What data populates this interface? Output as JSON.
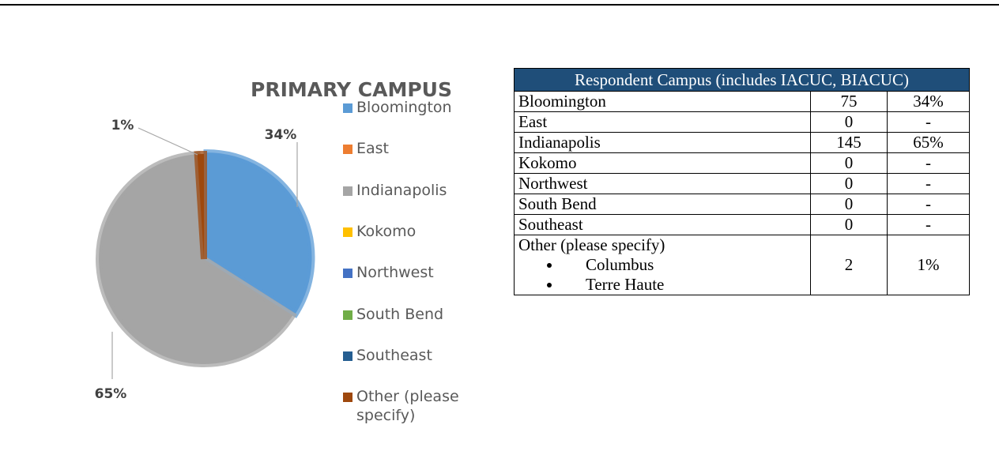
{
  "chart_data": {
    "type": "pie",
    "title": "PRIMARY CAMPUS",
    "categories": [
      "Bloomington",
      "East",
      "Indianapolis",
      "Kokomo",
      "Northwest",
      "South Bend",
      "Southeast",
      "Other (please specify)"
    ],
    "values": [
      34,
      0,
      65,
      0,
      0,
      0,
      0,
      1
    ],
    "value_labels": [
      "34%",
      null,
      "65%",
      null,
      null,
      null,
      null,
      "1%"
    ],
    "colors": [
      "#5b9bd5",
      "#ed7d31",
      "#a5a5a5",
      "#ffc000",
      "#4472c4",
      "#70ad47",
      "#255e91",
      "#9e480e"
    ]
  },
  "table": {
    "header": "Respondent Campus (includes IACUC, BIACUC)",
    "rows": [
      [
        "Bloomington",
        75,
        "34%"
      ],
      [
        "East",
        0,
        "-"
      ],
      [
        "Indianapolis",
        145,
        "65%"
      ],
      [
        "Kokomo",
        0,
        "-"
      ],
      [
        "Northwest",
        0,
        "-"
      ],
      [
        "South Bend",
        0,
        "-"
      ],
      [
        "Southeast",
        0,
        "-"
      ]
    ],
    "other": {
      "label": "Other (please specify)",
      "items": [
        "Columbus",
        "Terre Haute"
      ],
      "count": 2,
      "percent": "1%"
    }
  }
}
